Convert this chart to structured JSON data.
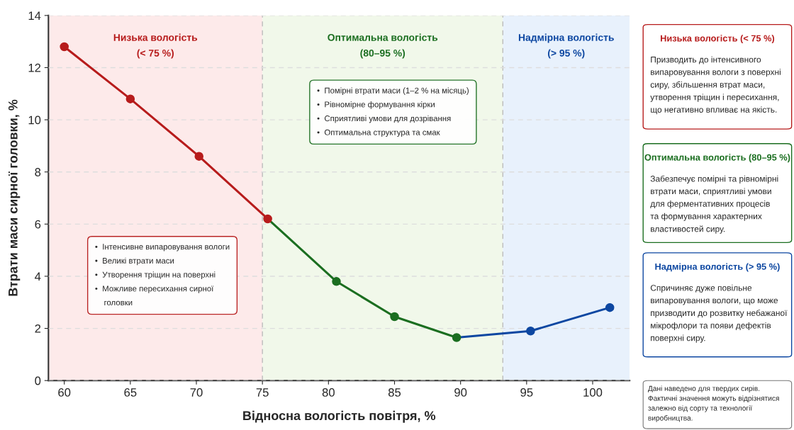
{
  "chart_data": {
    "type": "line",
    "xlabel": "Відносна вологість повітря, %",
    "ylabel": "Втрати маси сирної головки, %",
    "xlim": [
      58.8,
      102.8
    ],
    "xticks": [
      60,
      65,
      70,
      75,
      80,
      85,
      90,
      95,
      100
    ],
    "ylim": [
      0,
      14
    ],
    "yticks": [
      0,
      2,
      4,
      6,
      8,
      10,
      12,
      14
    ],
    "grid": "y",
    "marker": "circle",
    "line_style": "solid",
    "legend": false,
    "series": [
      {
        "color": "#b71c1c",
        "x": [
          60,
          65,
          70.2,
          75.4
        ],
        "values": [
          12.8,
          10.8,
          8.6,
          6.2
        ]
      },
      {
        "color": "#1b6e20",
        "x": [
          75.4,
          80.6,
          85,
          89.7
        ],
        "values": [
          6.2,
          3.8,
          2.45,
          1.65
        ]
      },
      {
        "color": "#0d47a1",
        "x": [
          89.7,
          95.3,
          101.3
        ],
        "values": [
          1.65,
          1.9,
          2.8
        ]
      }
    ],
    "ref_lines": [
      {
        "axis": "x",
        "value": 75,
        "color": "#bbbbbb",
        "line_style": "dashed"
      },
      {
        "axis": "x",
        "value": 93.2,
        "color": "#bbbbbb",
        "line_style": "dashed"
      }
    ],
    "bands": [
      {
        "axis": "x",
        "from": 58.8,
        "to": 75,
        "label": "Низька вологість\n(< 75 %)",
        "color": "#fdeaea"
      },
      {
        "axis": "x",
        "from": 75,
        "to": 93.2,
        "label": "Оптимальна вологість\n(80–95 %)",
        "color": "#f1f8ea"
      },
      {
        "axis": "x",
        "from": 93.2,
        "to": 102.8,
        "label": "Надмірна вологість\n(> 95 %)",
        "color": "#e8f1fc"
      }
    ],
    "annotations": [
      "•  Інтенсивне випаровування вологи\n•  Великі втрати маси\n•  Утворення тріщин на поверхні\n•  Можливе пересихання сирної\n    головки",
      "•  Помірні втрати маси (1–2 % на місяць)\n•  Рівномірне формування кірки\n•  Сприятливі умови для дозрівання\n•  Оптимальна структура та смак",
      "Низька вологість (< 75 %)",
      "Призводить до інтенсивного\nвипаровування вологи з поверхні\nсиру, збільшення втрат маси,\nутворення тріщин і пересихання,\nщо негативно впливає на якість.",
      "Оптимальна вологість (80–95 %)",
      "Забезпечує помірні та рівномірні\nвтрати маси, сприятливі умови\nдля ферментативних процесів\nта формування характерних\nвластивостей сиру.",
      "Надмірна вологість (> 95 %)",
      "Спричиняє дуже повільне\nвипаровування вологи, що може\nпризводити до розвитку небажаної\nмікрофлори та появи дефектів\nповерхні сиру.",
      "Дані наведено для твердих сирів.\nФактичні значення можуть відрізнятися\nзалежно від сорту та технології\nвиробництва."
    ]
  }
}
